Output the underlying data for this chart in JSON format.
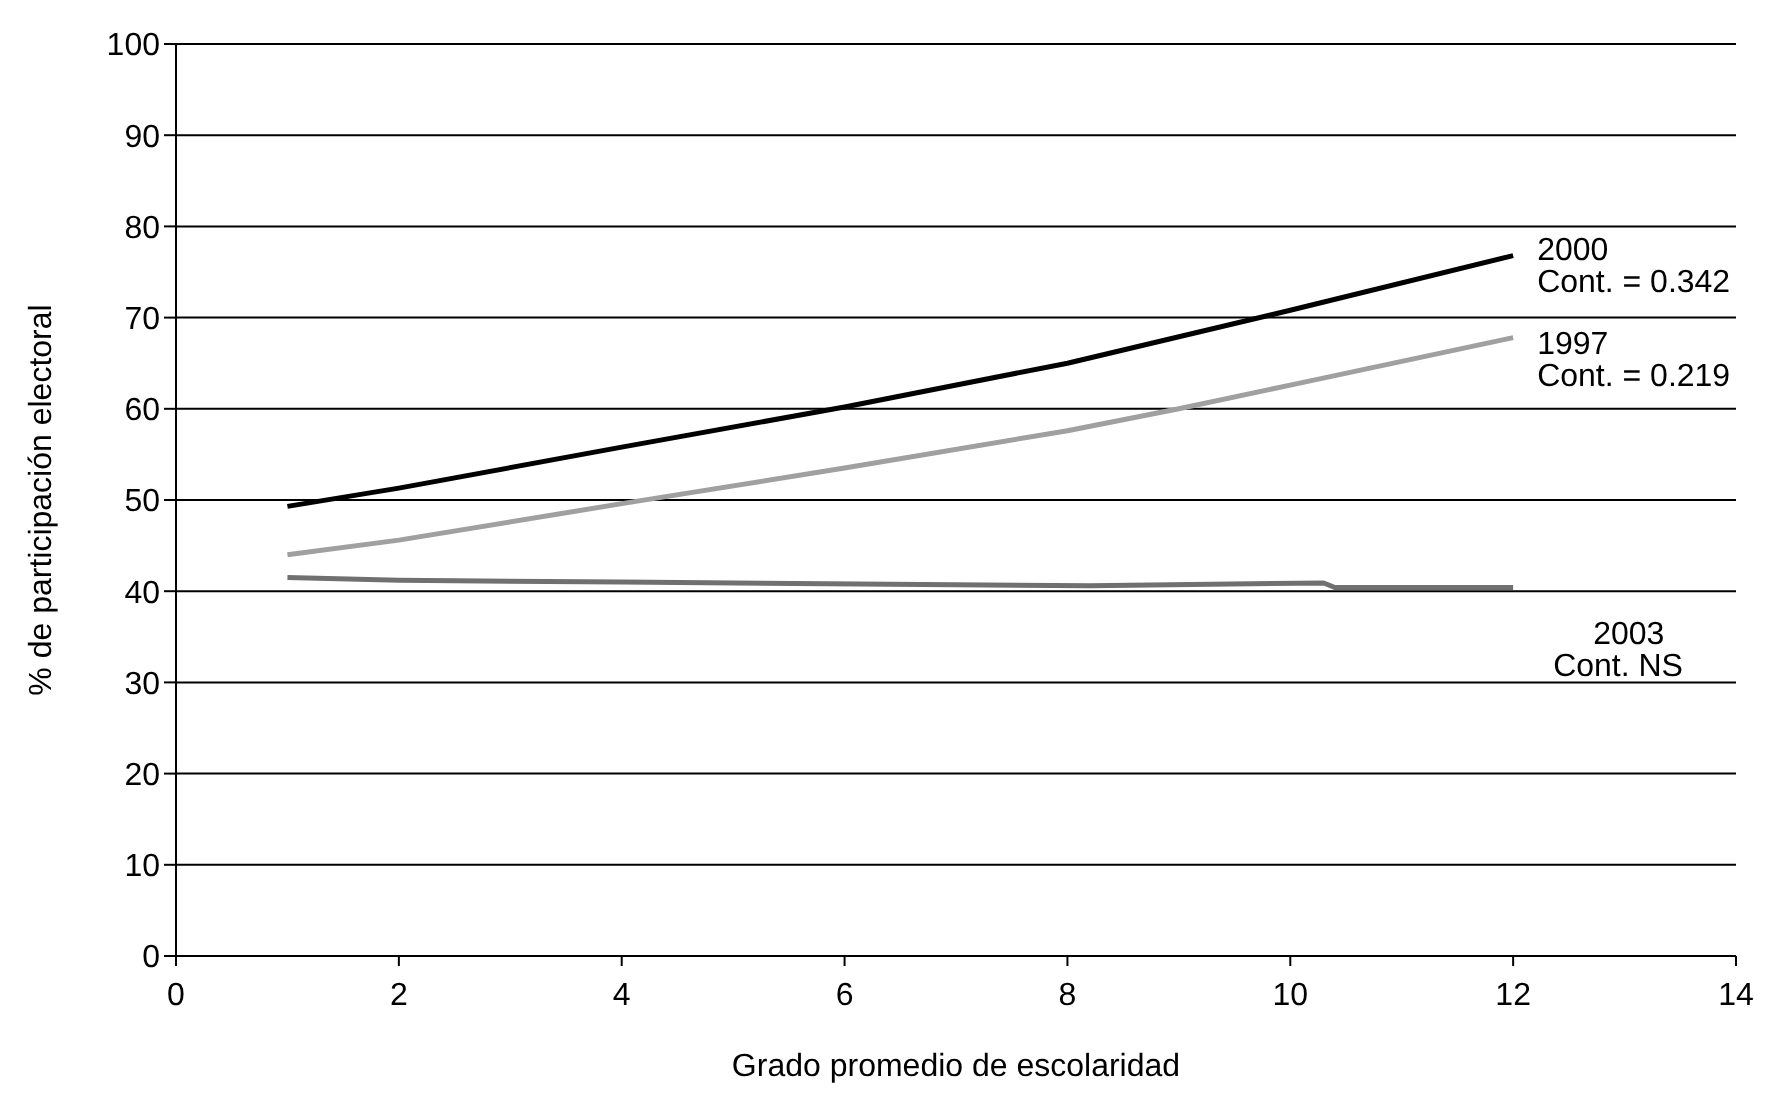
{
  "chart_data": {
    "type": "line",
    "xlabel": "Grado promedio de escolaridad",
    "ylabel": "% de participación electoral",
    "xlim": [
      0,
      14
    ],
    "xticks": [
      0,
      2,
      4,
      6,
      8,
      10,
      12,
      14
    ],
    "ylim": [
      0,
      100
    ],
    "yticks": [
      0,
      10,
      20,
      30,
      40,
      50,
      60,
      70,
      80,
      90,
      100
    ],
    "grid": "y",
    "legend": false,
    "marker": "none",
    "line_style": "solid",
    "series": [
      {
        "name": "2000",
        "color": "#000000",
        "x": [
          1,
          2,
          4,
          6,
          8,
          10,
          12
        ],
        "values": [
          49.3,
          51.3,
          55.8,
          60.2,
          65.0,
          70.8,
          76.8
        ]
      },
      {
        "name": "1997",
        "color": "#a0a0a0",
        "x": [
          1,
          2,
          4,
          6,
          8,
          9,
          10,
          12
        ],
        "values": [
          44.0,
          45.6,
          49.6,
          53.5,
          57.6,
          60.0,
          62.6,
          67.8
        ]
      },
      {
        "name": "2003",
        "color": "#707070",
        "x": [
          1,
          2,
          4,
          8.2,
          10.3,
          10.4,
          12
        ],
        "values": [
          41.5,
          41.2,
          41.0,
          40.6,
          40.9,
          40.4,
          40.4
        ]
      }
    ],
    "annotations": [
      "Cont. = 0.342",
      "Cont. = 0.219",
      "Cont. NS"
    ]
  }
}
